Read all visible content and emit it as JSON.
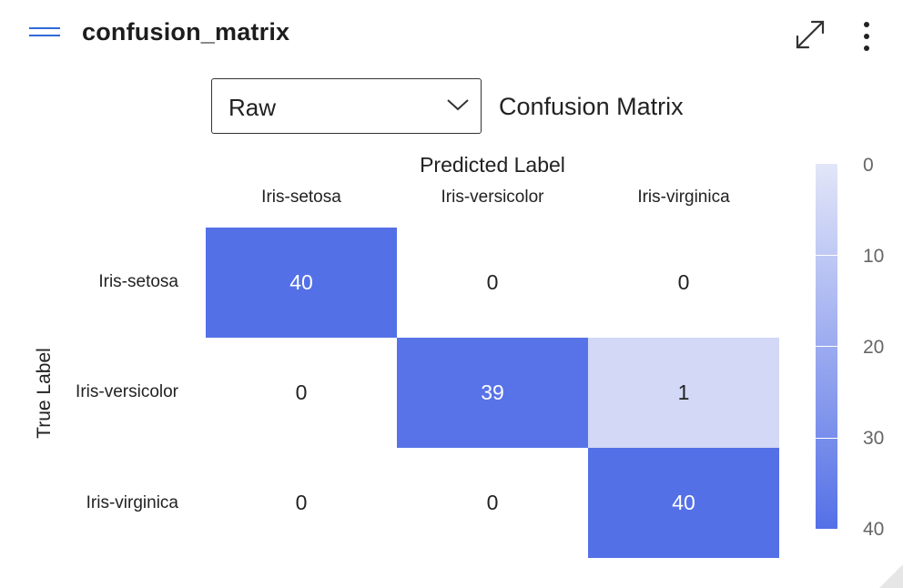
{
  "header": {
    "title": "confusion_matrix",
    "icons": {
      "menu": "hamburger-menu-icon",
      "expand": "expand-icon",
      "more": "more-vertical-icon"
    }
  },
  "controls": {
    "view_select": {
      "value": "Raw",
      "icon": "chevron-down-icon"
    }
  },
  "colors": {
    "accent": "#2f6bd8",
    "scale_low": "#e3e6f8",
    "scale_high": "#5470e7",
    "text_dark": "#222222",
    "text_light": "#ffffff"
  },
  "chart_data": {
    "type": "heatmap",
    "title": "Confusion Matrix",
    "xlabel": "Predicted Label",
    "ylabel": "True Label",
    "x_categories": [
      "Iris-setosa",
      "Iris-versicolor",
      "Iris-virginica"
    ],
    "y_categories": [
      "Iris-setosa",
      "Iris-versicolor",
      "Iris-virginica"
    ],
    "values": [
      [
        40,
        0,
        0
      ],
      [
        0,
        39,
        1
      ],
      [
        0,
        0,
        40
      ]
    ],
    "colorbar": {
      "range": [
        0,
        40
      ],
      "ticks": [
        "0",
        "10",
        "20",
        "30",
        "40"
      ]
    }
  }
}
